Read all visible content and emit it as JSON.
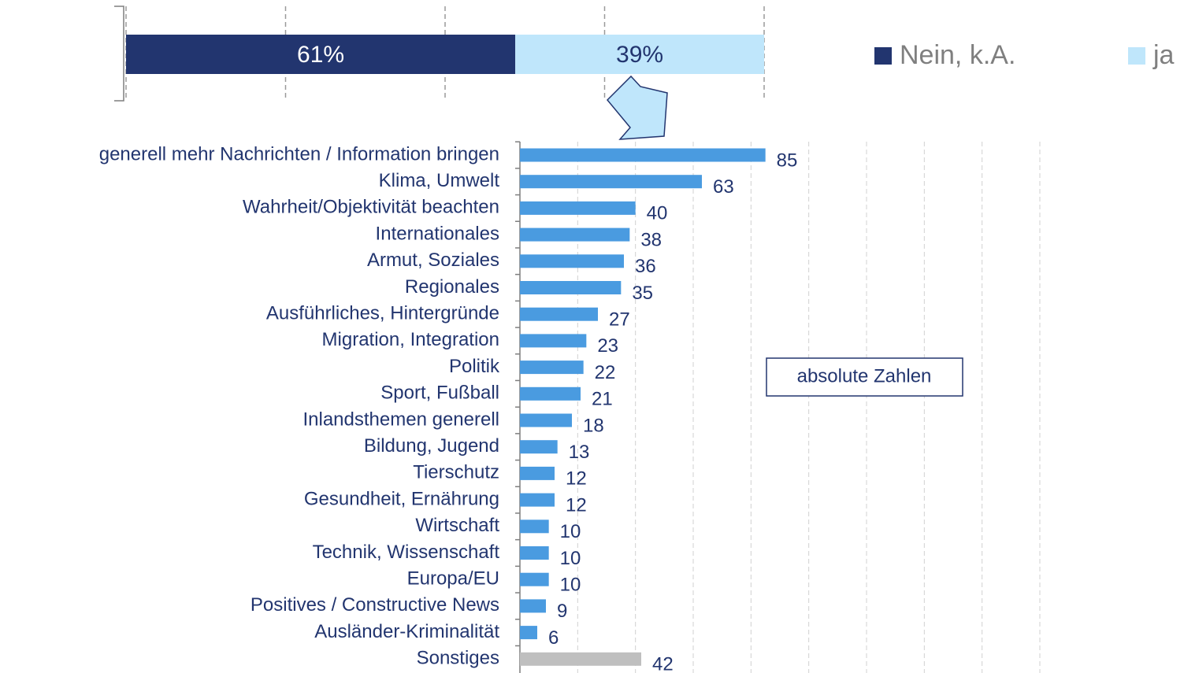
{
  "chart_data": [
    {
      "type": "stacked_bar",
      "categories": [
        null
      ],
      "series": [
        {
          "name": "Nein, k.A.",
          "color": "#22356f",
          "values": [
            61
          ],
          "value_labels": [
            "61%"
          ]
        },
        {
          "name": "ja",
          "color": "#bfe6fb",
          "values": [
            39
          ],
          "value_labels": [
            "39%"
          ]
        }
      ],
      "xlim": [
        0,
        100
      ],
      "xticks": [
        0,
        25,
        50,
        75,
        100
      ],
      "grid": true,
      "legend": "right"
    },
    {
      "type": "barh",
      "annotation": "absolute Zahlen",
      "categories": [
        "generell mehr Nachrichten / Information bringen",
        "Klima, Umwelt",
        "Wahrheit/Objektivität beachten",
        "Internationales",
        "Armut, Soziales",
        "Regionales",
        "Ausführliches, Hintergründe",
        "Migration, Integration",
        "Politik",
        "Sport, Fußball",
        "Inlandsthemen generell",
        "Bildung, Jugend",
        "Tierschutz",
        "Gesundheit, Ernährung",
        "Wirtschaft",
        "Technik, Wissenschaft",
        "Europa/EU",
        "Positives / Constructive News",
        "Ausländer-Kriminalität",
        "Sonstiges"
      ],
      "values": [
        85,
        63,
        40,
        38,
        36,
        35,
        27,
        23,
        22,
        21,
        18,
        13,
        12,
        12,
        10,
        10,
        10,
        9,
        6,
        42
      ],
      "colors": [
        "#4a9be0",
        "#4a9be0",
        "#4a9be0",
        "#4a9be0",
        "#4a9be0",
        "#4a9be0",
        "#4a9be0",
        "#4a9be0",
        "#4a9be0",
        "#4a9be0",
        "#4a9be0",
        "#4a9be0",
        "#4a9be0",
        "#4a9be0",
        "#4a9be0",
        "#4a9be0",
        "#4a9be0",
        "#4a9be0",
        "#4a9be0",
        "#bfbfbf"
      ],
      "xlim": [
        0,
        180
      ],
      "xticks": [
        0,
        20,
        40,
        60,
        80,
        100,
        120,
        140,
        160,
        180
      ],
      "grid": true
    }
  ]
}
